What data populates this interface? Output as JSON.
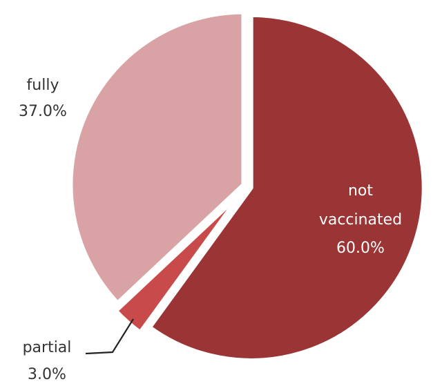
{
  "chart_data": {
    "type": "pie",
    "title": "",
    "slices": [
      {
        "name": "not vaccinated",
        "label_lines": [
          "not",
          "vaccinated"
        ],
        "value": 60.0,
        "value_label": "60.0%",
        "color": "#9b3434",
        "label_position": "inside"
      },
      {
        "name": "partial",
        "label_lines": [
          "partial"
        ],
        "value": 3.0,
        "value_label": "3.0%",
        "color": "#c84a4a",
        "label_position": "outside-bottom-left"
      },
      {
        "name": "fully",
        "label_lines": [
          "fully"
        ],
        "value": 37.0,
        "value_label": "37.0%",
        "color": "#d9a3a5",
        "label_position": "outside-left"
      }
    ],
    "start_angle": "12 o'clock",
    "direction": "clockwise",
    "exploded": true,
    "legend": "none"
  }
}
